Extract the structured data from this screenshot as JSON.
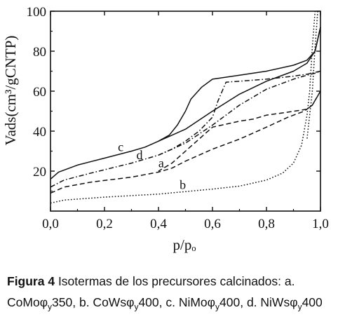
{
  "chart_data": {
    "type": "line",
    "xlabel": "p/pₒ",
    "ylabel": "Vads(cm³/gCNTP)",
    "xlim": [
      0.0,
      1.0
    ],
    "ylim": [
      0,
      100
    ],
    "x_ticks": [
      "0,0",
      "0,2",
      "0,4",
      "0,6",
      "0,8",
      "1,0"
    ],
    "y_ticks": [
      "20",
      "40",
      "60",
      "80",
      "100"
    ],
    "grid": false,
    "series": [
      {
        "name": "a",
        "style": "dashed",
        "adsorption": [
          [
            0.0,
            9
          ],
          [
            0.05,
            12
          ],
          [
            0.15,
            14.5
          ],
          [
            0.3,
            17
          ],
          [
            0.4,
            19.5
          ],
          [
            0.45,
            21.5
          ],
          [
            0.5,
            25
          ],
          [
            0.6,
            31
          ],
          [
            0.7,
            36
          ],
          [
            0.8,
            42
          ],
          [
            0.88,
            47
          ],
          [
            0.94,
            50
          ],
          [
            0.97,
            53
          ],
          [
            1.0,
            60
          ]
        ],
        "desorption": [
          [
            1.0,
            60
          ],
          [
            0.97,
            53
          ],
          [
            0.95,
            51
          ],
          [
            0.88,
            49.5
          ],
          [
            0.8,
            48
          ],
          [
            0.75,
            46
          ],
          [
            0.7,
            45
          ],
          [
            0.6,
            42
          ],
          [
            0.55,
            36
          ],
          [
            0.5,
            30
          ],
          [
            0.45,
            24
          ],
          [
            0.4,
            20
          ]
        ]
      },
      {
        "name": "b",
        "style": "dotted",
        "adsorption": [
          [
            0.0,
            4
          ],
          [
            0.05,
            5.5
          ],
          [
            0.2,
            7
          ],
          [
            0.4,
            8.5
          ],
          [
            0.6,
            11
          ],
          [
            0.7,
            12.5
          ],
          [
            0.8,
            15.5
          ],
          [
            0.86,
            19
          ],
          [
            0.9,
            24
          ],
          [
            0.93,
            33
          ],
          [
            0.95,
            48
          ],
          [
            0.96,
            60
          ],
          [
            0.97,
            82
          ],
          [
            0.98,
            100
          ]
        ],
        "desorption": [
          [
            0.99,
            100
          ],
          [
            0.98,
            82
          ],
          [
            0.97,
            60
          ],
          [
            0.96,
            48
          ],
          [
            0.95,
            36
          ]
        ]
      },
      {
        "name": "c",
        "style": "solid",
        "adsorption": [
          [
            0.0,
            16
          ],
          [
            0.03,
            19.5
          ],
          [
            0.1,
            23
          ],
          [
            0.2,
            26.5
          ],
          [
            0.3,
            30
          ],
          [
            0.35,
            32
          ],
          [
            0.4,
            35
          ],
          [
            0.5,
            41
          ],
          [
            0.6,
            50
          ],
          [
            0.7,
            58.5
          ],
          [
            0.8,
            65
          ],
          [
            0.9,
            70
          ],
          [
            0.95,
            74
          ],
          [
            0.98,
            80
          ],
          [
            1.0,
            92
          ]
        ],
        "desorption": [
          [
            1.0,
            92
          ],
          [
            0.98,
            80
          ],
          [
            0.95,
            75.5
          ],
          [
            0.9,
            73
          ],
          [
            0.8,
            70
          ],
          [
            0.7,
            68
          ],
          [
            0.6,
            66
          ],
          [
            0.56,
            62
          ],
          [
            0.52,
            56
          ],
          [
            0.5,
            50
          ],
          [
            0.47,
            43
          ],
          [
            0.44,
            38
          ],
          [
            0.4,
            35
          ]
        ]
      },
      {
        "name": "d",
        "style": "dash-dot",
        "adsorption": [
          [
            0.0,
            12
          ],
          [
            0.05,
            15.5
          ],
          [
            0.15,
            19
          ],
          [
            0.3,
            24
          ],
          [
            0.4,
            28
          ],
          [
            0.5,
            34
          ],
          [
            0.6,
            43
          ],
          [
            0.7,
            53
          ],
          [
            0.8,
            61
          ],
          [
            0.9,
            66
          ],
          [
            0.95,
            68
          ],
          [
            0.98,
            69
          ],
          [
            1.0,
            70
          ]
        ],
        "desorption": [
          [
            1.0,
            70
          ],
          [
            0.95,
            68.5
          ],
          [
            0.9,
            67.5
          ],
          [
            0.8,
            66
          ],
          [
            0.7,
            65
          ],
          [
            0.65,
            64.5
          ],
          [
            0.62,
            55
          ],
          [
            0.6,
            47
          ],
          [
            0.55,
            40
          ],
          [
            0.5,
            35
          ],
          [
            0.45,
            31
          ],
          [
            0.4,
            28
          ]
        ]
      }
    ],
    "curve_labels": [
      {
        "text": "a",
        "x": 0.41,
        "y": 22
      },
      {
        "text": "b",
        "x": 0.49,
        "y": 11
      },
      {
        "text": "c",
        "x": 0.26,
        "y": 30
      },
      {
        "text": "d",
        "x": 0.33,
        "y": 26
      }
    ]
  },
  "caption": {
    "figure_label": "Figura 4",
    "text_parts": [
      " Isotermas de los precursores calcinados: a. CoMo",
      "φ",
      "y",
      "350, b. CoWs",
      "φ",
      "y",
      "400, c. NiMo",
      "φ",
      "y",
      "400, d. NiWs",
      "φ",
      "y",
      "400"
    ]
  }
}
